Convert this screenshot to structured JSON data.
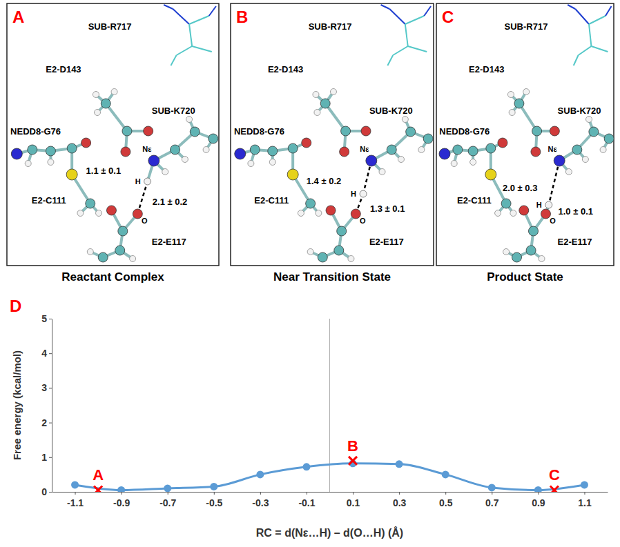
{
  "panels": [
    {
      "letter": "A",
      "caption": "Reactant Complex",
      "residues": [
        "SUB-R717",
        "E2-D143",
        "NEDD8-G76",
        "SUB-K720",
        "E2-C111",
        "E2-E117"
      ],
      "atoms": [
        "Nε",
        "H",
        "O"
      ],
      "distances": [
        "1.1 ± 0.1",
        "2.1 ± 0.2"
      ]
    },
    {
      "letter": "B",
      "caption": "Near Transition State",
      "residues": [
        "SUB-R717",
        "E2-D143",
        "NEDD8-G76",
        "SUB-K720",
        "E2-C111",
        "E2-E117"
      ],
      "atoms": [
        "Nε",
        "H",
        "O"
      ],
      "distances": [
        "1.4 ± 0.2",
        "1.3 ± 0.1"
      ]
    },
    {
      "letter": "C",
      "caption": "Product State",
      "residues": [
        "SUB-R717",
        "E2-D143",
        "NEDD8-G76",
        "SUB-K720",
        "E2-C111",
        "E2-E117"
      ],
      "atoms": [
        "Nε",
        "H",
        "O"
      ],
      "distances": [
        "2.0 ± 0.3",
        "1.0 ± 0.1"
      ]
    }
  ],
  "chart_letter": "D",
  "chart_data": {
    "type": "line",
    "x_label": "RC = d(Nε…H) – d(O…H)  (Å)",
    "y_label": "Free energy (kcal/mol)",
    "x": [
      -1.1,
      -0.9,
      -0.7,
      -0.5,
      -0.3,
      -0.1,
      0.1,
      0.3,
      0.5,
      0.7,
      0.9,
      1.1
    ],
    "values": [
      0.2,
      0.05,
      0.1,
      0.15,
      0.5,
      0.72,
      0.82,
      0.8,
      0.5,
      0.12,
      0.05,
      0.2
    ],
    "color": "#5b9bd5",
    "marker": "circle",
    "xlim": [
      -1.2,
      1.2
    ],
    "xticks": [
      -1.1,
      -0.9,
      -0.7,
      -0.5,
      -0.3,
      -0.1,
      0.1,
      0.3,
      0.5,
      0.7,
      0.9,
      1.1
    ],
    "ylim": [
      0,
      5
    ],
    "yticks": [
      0,
      1,
      2,
      3,
      4,
      5
    ],
    "grid": false,
    "vlines": [
      0
    ],
    "annotations": [
      {
        "label": "A",
        "x": -1.0,
        "y": 0.05,
        "color": "#ff0000",
        "marker": "x"
      },
      {
        "label": "B",
        "x": 0.1,
        "y": 0.9,
        "color": "#ff0000",
        "marker": "x"
      },
      {
        "label": "C",
        "x": 0.97,
        "y": 0.05,
        "color": "#ff0000",
        "marker": "x"
      }
    ]
  }
}
